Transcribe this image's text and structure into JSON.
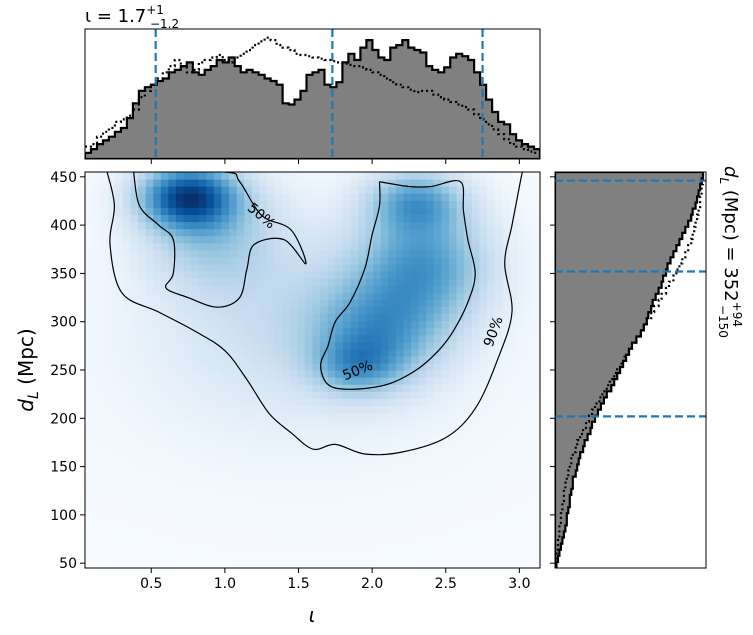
{
  "chart_data": [
    {
      "type": "heatmap",
      "panel": "joint",
      "xlabel": "ι",
      "ylabel": "d_L (Mpc)",
      "ylabel_main": "d",
      "ylabel_sub": "L",
      "ylabel_rest": " (Mpc)",
      "xlim": [
        0.05,
        3.14
      ],
      "ylim": [
        45,
        455
      ],
      "xticks": [
        0.5,
        1.0,
        1.5,
        2.0,
        2.5,
        3.0
      ],
      "xtick_labels": [
        "0.5",
        "1.0",
        "1.5",
        "2.0",
        "2.5",
        "3.0"
      ],
      "yticks": [
        50,
        100,
        150,
        200,
        250,
        300,
        350,
        400,
        450
      ],
      "ytick_labels": [
        "50",
        "100",
        "150",
        "200",
        "250",
        "300",
        "350",
        "400",
        "450"
      ],
      "colormap": "Blues",
      "density_blobs": [
        {
          "x": 0.75,
          "y": 430,
          "sx": 0.22,
          "sy": 22,
          "w": 1.0
        },
        {
          "x": 0.9,
          "y": 395,
          "sx": 0.3,
          "sy": 40,
          "w": 0.35
        },
        {
          "x": 2.3,
          "y": 425,
          "sx": 0.22,
          "sy": 22,
          "w": 0.55
        },
        {
          "x": 2.35,
          "y": 360,
          "sx": 0.3,
          "sy": 40,
          "w": 0.6
        },
        {
          "x": 2.05,
          "y": 290,
          "sx": 0.3,
          "sy": 35,
          "w": 0.5
        },
        {
          "x": 1.9,
          "y": 255,
          "sx": 0.2,
          "sy": 20,
          "w": 0.4
        },
        {
          "x": 1.5,
          "y": 320,
          "sx": 0.6,
          "sy": 60,
          "w": 0.18
        },
        {
          "x": 1.5,
          "y": 250,
          "sx": 0.8,
          "sy": 70,
          "w": 0.08
        }
      ],
      "contours": [
        {
          "level": "90%",
          "label": "90%",
          "points": [
            [
              0.2,
              455
            ],
            [
              0.25,
              420
            ],
            [
              0.22,
              380
            ],
            [
              0.3,
              330
            ],
            [
              0.55,
              310
            ],
            [
              0.8,
              290
            ],
            [
              1.0,
              270
            ],
            [
              1.15,
              240
            ],
            [
              1.3,
              205
            ],
            [
              1.45,
              185
            ],
            [
              1.6,
              168
            ],
            [
              1.75,
              173
            ],
            [
              1.95,
              163
            ],
            [
              2.2,
              165
            ],
            [
              2.5,
              180
            ],
            [
              2.7,
              210
            ],
            [
              2.85,
              260
            ],
            [
              2.95,
              310
            ],
            [
              2.9,
              360
            ],
            [
              2.95,
              400
            ],
            [
              3.0,
              440
            ],
            [
              3.02,
              455
            ]
          ]
        },
        {
          "level": "50%",
          "label": "50%",
          "points": [
            [
              0.38,
              455
            ],
            [
              0.42,
              420
            ],
            [
              0.55,
              400
            ],
            [
              0.65,
              385
            ],
            [
              0.65,
              350
            ],
            [
              0.6,
              335
            ],
            [
              0.75,
              325
            ],
            [
              0.95,
              315
            ],
            [
              1.1,
              325
            ],
            [
              1.15,
              355
            ],
            [
              1.2,
              380
            ],
            [
              1.4,
              385
            ],
            [
              1.55,
              360
            ],
            [
              1.45,
              395
            ],
            [
              1.25,
              410
            ],
            [
              1.1,
              445
            ],
            [
              1.0,
              455
            ],
            [
              0.38,
              455
            ]
          ]
        },
        {
          "level": "50%",
          "label": "50%",
          "points": [
            [
              2.05,
              445
            ],
            [
              2.25,
              440
            ],
            [
              2.4,
              440
            ],
            [
              2.6,
              445
            ],
            [
              2.62,
              415
            ],
            [
              2.65,
              385
            ],
            [
              2.7,
              350
            ],
            [
              2.65,
              320
            ],
            [
              2.55,
              290
            ],
            [
              2.45,
              270
            ],
            [
              2.3,
              250
            ],
            [
              2.1,
              235
            ],
            [
              1.85,
              230
            ],
            [
              1.7,
              235
            ],
            [
              1.65,
              255
            ],
            [
              1.7,
              275
            ],
            [
              1.75,
              300
            ],
            [
              1.85,
              320
            ],
            [
              1.95,
              355
            ],
            [
              2.0,
              390
            ],
            [
              2.05,
              420
            ],
            [
              2.05,
              445
            ]
          ]
        }
      ]
    },
    {
      "type": "bar",
      "panel": "top-marginal",
      "title_main": "ι = 1.7",
      "title_sup": "+1",
      "title_sub": "−1.2",
      "title": "ι = 1.7 +1 −1.2",
      "bins_x": [
        0.05,
        3.14
      ],
      "values": [
        5,
        8,
        12,
        15,
        18,
        22,
        25,
        33,
        45,
        55,
        58,
        60,
        63,
        65,
        70,
        72,
        75,
        78,
        70,
        68,
        72,
        75,
        80,
        78,
        82,
        75,
        70,
        72,
        70,
        68,
        65,
        63,
        60,
        45,
        44,
        48,
        55,
        68,
        70,
        72,
        60,
        58,
        62,
        78,
        85,
        80,
        90,
        96,
        88,
        82,
        80,
        90,
        92,
        96,
        90,
        88,
        86,
        75,
        72,
        70,
        74,
        82,
        85,
        83,
        80,
        70,
        60,
        48,
        38,
        30,
        28,
        20,
        15,
        12,
        10,
        8
      ],
      "dotted_values": [
        10,
        12,
        18,
        22,
        25,
        30,
        32,
        35,
        40,
        50,
        55,
        60,
        65,
        70,
        75,
        80,
        75,
        70,
        72,
        78,
        80,
        82,
        84,
        80,
        78,
        82,
        85,
        88,
        92,
        95,
        98,
        96,
        92,
        90,
        88,
        85,
        84,
        83,
        82,
        81,
        80,
        79,
        78,
        77,
        76,
        75,
        74,
        72,
        70,
        68,
        65,
        62,
        60,
        58,
        56,
        54,
        55,
        55,
        52,
        50,
        48,
        46,
        44,
        42,
        40,
        36,
        32,
        28,
        24,
        20,
        16,
        12,
        10,
        8,
        6,
        5
      ],
      "quantile_lines": [
        0.53,
        1.73,
        2.75
      ]
    },
    {
      "type": "bar",
      "panel": "right-marginal",
      "orientation": "horizontal",
      "label_main": "d",
      "label_sub": "L",
      "label_rest": " (Mpc) = 352",
      "label_sup": "+94",
      "label_sub2": "−150",
      "label": "d_L (Mpc) = 352 +94 −150",
      "bins_y": [
        45,
        455
      ],
      "values": [
        1,
        2,
        3,
        4,
        5,
        6,
        7,
        8,
        8,
        9,
        10,
        10,
        11,
        12,
        12,
        14,
        15,
        16,
        17,
        19,
        20,
        22,
        24,
        25,
        27,
        29,
        31,
        33,
        35,
        38,
        40,
        42,
        44,
        46,
        48,
        50,
        52,
        55,
        58,
        60,
        62,
        63,
        65,
        66,
        68,
        70,
        72,
        73,
        75,
        76,
        78,
        80,
        82,
        84,
        86,
        88,
        90,
        92,
        93,
        95,
        96,
        97,
        98,
        99,
        100
      ],
      "dotted_values": [
        0,
        1,
        1,
        2,
        2,
        3,
        3,
        4,
        4,
        5,
        5,
        6,
        6,
        7,
        8,
        9,
        10,
        11,
        12,
        14,
        15,
        17,
        19,
        21,
        23,
        25,
        27,
        30,
        32,
        35,
        37,
        40,
        42,
        45,
        47,
        50,
        52,
        55,
        58,
        60,
        62,
        65,
        67,
        70,
        72,
        75,
        77,
        80,
        82,
        84,
        86,
        88,
        90,
        92,
        93,
        94,
        95,
        96,
        97,
        98,
        98,
        99,
        99,
        100,
        100
      ],
      "quantile_lines": [
        202,
        352,
        446
      ]
    }
  ]
}
